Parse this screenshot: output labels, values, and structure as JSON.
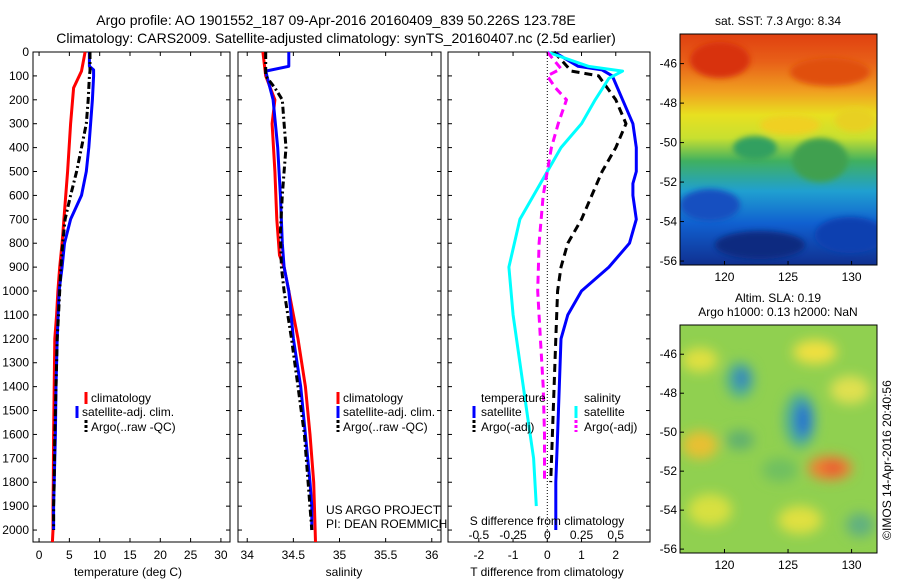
{
  "title_line1": "Argo profile: AO 1901552_187 09-Apr-2016 20160409_839 50.226S 123.78E",
  "title_line2": "Climatology: CARS2009. Satellite-adjusted climatology: synTS_20160407.nc (2.5d earlier)",
  "credit": "US ARGO PROJECT",
  "pi": "PI: DEAN ROEMMICH",
  "imos_stamp": "©IMOS 14-Apr-2016 20:40:56",
  "colors": {
    "climatology": "#ff0000",
    "satellite": "#0000ff",
    "argo": "#000000",
    "salinity_satellite": "#00ffff",
    "salinity_argo": "#ff00ff"
  },
  "chart_data": [
    {
      "type": "line",
      "id": "temperature",
      "xlabel": "temperature (deg C)",
      "ylabel": "",
      "xlim": [
        -1,
        31.5
      ],
      "ylim": [
        2050,
        0
      ],
      "xticks": [
        0,
        5,
        10,
        15,
        20,
        25,
        30
      ],
      "yticks": [
        0,
        100,
        200,
        300,
        400,
        500,
        600,
        700,
        800,
        900,
        1000,
        1100,
        1200,
        1300,
        1400,
        1500,
        1600,
        1700,
        1800,
        1900,
        2000
      ],
      "legend": {
        "position": "bottom-right",
        "entries": [
          "climatology",
          "satellite-adj. clim.",
          "Argo(..raw -QC)"
        ]
      },
      "series": [
        {
          "name": "climatology",
          "color": "#ff0000",
          "style": "solid",
          "x": [
            7.6,
            7.0,
            5.7,
            5.2,
            4.7,
            4.1,
            3.8,
            3.4,
            3.1,
            2.9,
            2.6,
            2.5,
            2.4,
            2.35,
            2.3,
            2.3,
            2.2
          ],
          "y": [
            0,
            80,
            150,
            300,
            500,
            700,
            800,
            900,
            1000,
            1100,
            1200,
            1400,
            1600,
            1800,
            1900,
            2000,
            2050
          ]
        },
        {
          "name": "satellite-adj. clim.",
          "color": "#0000ff",
          "style": "solid",
          "x": [
            8.3,
            8.3,
            9.0,
            9.0,
            8.8,
            8.5,
            8.2,
            7.8,
            7.0,
            5.2,
            4.2,
            3.8,
            3.3,
            3.0,
            2.8,
            2.7,
            2.6,
            2.5,
            2.4,
            2.4
          ],
          "y": [
            0,
            60,
            75,
            100,
            200,
            300,
            400,
            500,
            600,
            700,
            800,
            900,
            1000,
            1200,
            1400,
            1600,
            1700,
            1800,
            1900,
            2000
          ]
        },
        {
          "name": "Argo(..raw -QC)",
          "color": "#000000",
          "style": "dashdot",
          "x": [
            8.4,
            8.4,
            8.3,
            8.1,
            7.8,
            7.0,
            6.2,
            5.2,
            4.3,
            3.9,
            3.6,
            3.4,
            3.2,
            3.0,
            2.8,
            2.6,
            2.5,
            2.4,
            2.4
          ],
          "y": [
            0,
            80,
            100,
            200,
            300,
            400,
            500,
            600,
            700,
            800,
            900,
            1000,
            1100,
            1200,
            1400,
            1600,
            1800,
            1900,
            2000
          ]
        }
      ]
    },
    {
      "type": "line",
      "id": "salinity",
      "xlabel": "salinity",
      "ylabel": "",
      "xlim": [
        33.9,
        36.1
      ],
      "ylim": [
        2050,
        0
      ],
      "xticks": [
        34,
        34.5,
        35,
        35.5,
        36
      ],
      "legend": {
        "position": "bottom-right",
        "entries": [
          "climatology",
          "satellite-adj. clim.",
          "Argo(..raw -QC)"
        ]
      },
      "series": [
        {
          "name": "climatology",
          "color": "#ff0000",
          "style": "solid",
          "x": [
            34.17,
            34.2,
            34.25,
            34.3,
            34.27,
            34.3,
            34.32,
            34.35,
            34.4,
            34.45,
            34.55,
            34.63,
            34.68,
            34.72,
            34.74
          ],
          "y": [
            0,
            100,
            150,
            200,
            300,
            500,
            700,
            850,
            900,
            1000,
            1200,
            1400,
            1600,
            1800,
            2050
          ]
        },
        {
          "name": "satellite-adj. clim.",
          "color": "#0000ff",
          "style": "solid",
          "x": [
            34.45,
            34.45,
            34.2,
            34.22,
            34.28,
            34.33,
            34.36,
            34.38,
            34.4,
            34.45,
            34.5,
            34.58,
            34.63,
            34.68,
            34.7,
            34.7
          ],
          "y": [
            0,
            60,
            80,
            110,
            200,
            400,
            600,
            800,
            900,
            1000,
            1200,
            1400,
            1600,
            1800,
            1900,
            2000
          ]
        },
        {
          "name": "Argo(..raw -QC)",
          "color": "#000000",
          "style": "dashdot",
          "x": [
            34.2,
            34.2,
            34.3,
            34.38,
            34.4,
            34.42,
            34.4,
            34.38,
            34.36,
            34.37,
            34.4,
            34.48,
            34.55,
            34.62,
            34.66,
            34.7
          ],
          "y": [
            0,
            100,
            150,
            200,
            300,
            400,
            500,
            600,
            750,
            900,
            1000,
            1200,
            1400,
            1600,
            1800,
            2000
          ]
        }
      ]
    },
    {
      "type": "line",
      "id": "difference",
      "xlabel": "T difference from climatology",
      "xlabel_top": "S difference from climatology",
      "ylabel": "",
      "xlim": [
        -2.9,
        3.0
      ],
      "ylim": [
        2050,
        0
      ],
      "xticks": [
        -2,
        -1,
        0,
        1,
        2
      ],
      "xticks_salinity": [
        -0.5,
        -0.25,
        0,
        0.25,
        0.5
      ],
      "legend": {
        "position": "bottom-center",
        "headers": [
          "temperature",
          "salinity"
        ],
        "entries": [
          "satellite",
          "Argo(-adj)",
          "satellite",
          "Argo(-adj)"
        ]
      },
      "series": [
        {
          "name": "temperature satellite",
          "color": "#0000ff",
          "style": "solid",
          "x": [
            0.2,
            0.9,
            1.6,
            1.9,
            2.2,
            2.5,
            2.6,
            2.6,
            2.5,
            2.5,
            2.6,
            2.4,
            1.8,
            1.0,
            0.6,
            0.4,
            0.35,
            0.3,
            0.25,
            0.25
          ],
          "y": [
            0,
            60,
            75,
            100,
            200,
            300,
            400,
            500,
            550,
            600,
            700,
            800,
            900,
            1000,
            1100,
            1200,
            1400,
            1600,
            1800,
            2000
          ]
        },
        {
          "name": "temperature Argo(-adj)",
          "color": "#000000",
          "style": "dashed",
          "x": [
            0.2,
            0.7,
            1.5,
            2.0,
            2.3,
            2.0,
            1.6,
            1.3,
            1.0,
            0.6,
            0.4,
            0.3,
            0.25,
            0.2,
            0.15,
            0.1
          ],
          "y": [
            0,
            80,
            100,
            200,
            300,
            400,
            500,
            600,
            700,
            800,
            900,
            1000,
            1200,
            1400,
            1600,
            1800
          ]
        },
        {
          "name": "salinity satellite",
          "color": "#00ffff",
          "style": "solid",
          "x": [
            0,
            0.3,
            0.55,
            0.45,
            0.35,
            0.25,
            0.1,
            0.0,
            -0.1,
            -0.2,
            -0.28,
            -0.25,
            -0.2,
            -0.15,
            -0.1,
            -0.08
          ],
          "y": [
            0,
            60,
            80,
            110,
            200,
            300,
            400,
            500,
            600,
            700,
            900,
            1100,
            1300,
            1500,
            1700,
            1900
          ]
        },
        {
          "name": "salinity Argo(-adj)",
          "color": "#ff00ff",
          "style": "dashed",
          "x": [
            0,
            0.1,
            0.0,
            0.06,
            0.14,
            0.08,
            0.03,
            0.0,
            -0.03,
            -0.06,
            -0.07,
            -0.05,
            -0.03,
            -0.02,
            -0.02
          ],
          "y": [
            0,
            70,
            100,
            150,
            200,
            300,
            400,
            500,
            600,
            800,
            1000,
            1200,
            1400,
            1600,
            1800
          ]
        }
      ]
    },
    {
      "type": "heatmap",
      "id": "sst_map",
      "title": "sat. SST: 7.3 Argo: 8.34",
      "xlim": [
        116.5,
        132
      ],
      "ylim": [
        -56.2,
        -44.5
      ],
      "xticks": [
        120,
        125,
        130
      ],
      "yticks": [
        -46,
        -48,
        -50,
        -52,
        -54,
        -56
      ],
      "colormap": "jet"
    },
    {
      "type": "heatmap",
      "id": "sla_map",
      "title": "Altim. SLA: 0.19",
      "subtitle": "Argo h1000: 0.13 h2000: NaN",
      "xlim": [
        116.5,
        132
      ],
      "ylim": [
        -56.2,
        -44.5
      ],
      "xticks": [
        120,
        125,
        130
      ],
      "yticks": [
        -46,
        -48,
        -50,
        -52,
        -54,
        -56
      ],
      "colormap": "jet"
    }
  ]
}
